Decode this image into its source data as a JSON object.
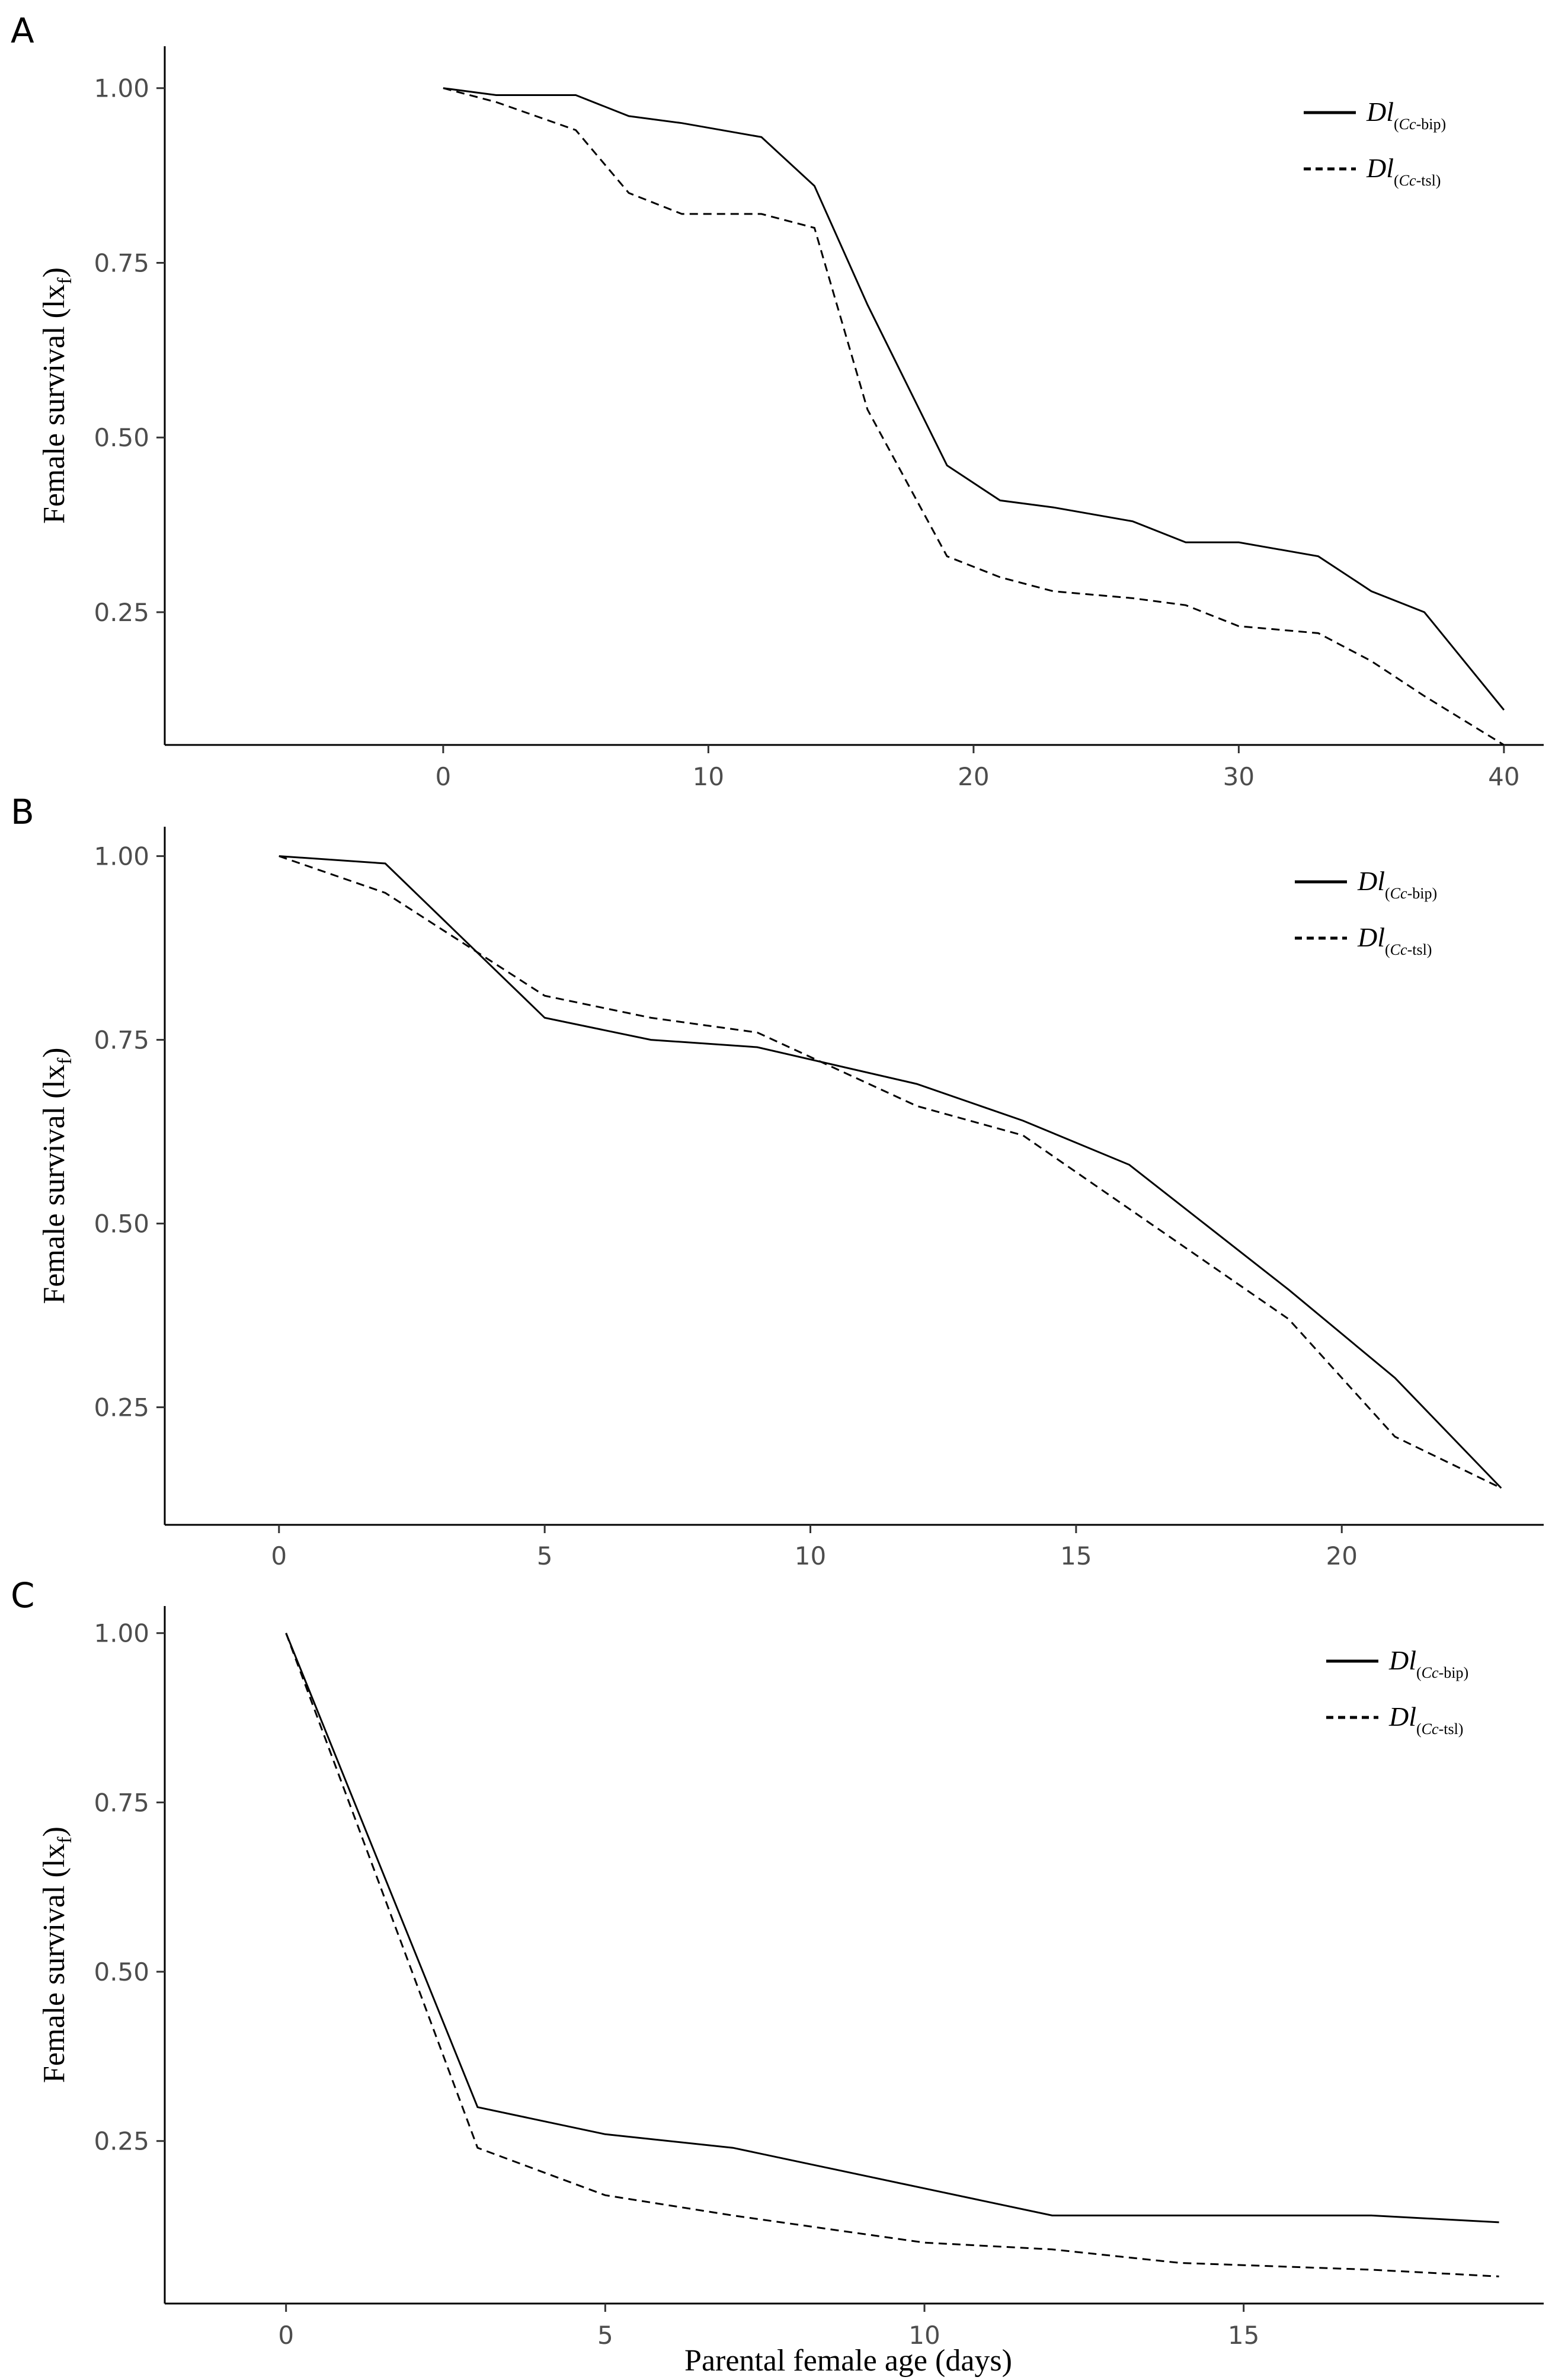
{
  "chart_data": [
    {
      "panel": "A",
      "type": "line",
      "ylabel": "Female survival (lx",
      "ylabel_sub": "f",
      "ylabel_end": ")",
      "xlim": [
        -10.5,
        41.5
      ],
      "ylim": [
        0.06,
        1.06
      ],
      "xticks": [
        0,
        10,
        20,
        30,
        40
      ],
      "xtick_labels": [
        "0",
        "10",
        "20",
        "30",
        "40"
      ],
      "yticks": [
        0.25,
        0.5,
        0.75,
        1.0
      ],
      "ytick_labels": [
        "0.25",
        "0.50",
        "0.75",
        "1.00"
      ],
      "legend_position": "top-right",
      "series": [
        {
          "name": "Dl(Cc-bip)",
          "style": "solid",
          "x": [
            0,
            2,
            5,
            7,
            9,
            12,
            14,
            16,
            19,
            21,
            23,
            26,
            28,
            30,
            33,
            35,
            37,
            40
          ],
          "y": [
            1.0,
            0.99,
            0.99,
            0.96,
            0.95,
            0.93,
            0.86,
            0.69,
            0.46,
            0.41,
            0.4,
            0.38,
            0.35,
            0.35,
            0.33,
            0.28,
            0.25,
            0.11
          ]
        },
        {
          "name": "Dl(Cc-tsl)",
          "style": "dashed",
          "x": [
            0,
            2,
            5,
            7,
            9,
            12,
            14,
            16,
            19,
            21,
            23,
            26,
            28,
            30,
            33,
            35,
            37,
            40
          ],
          "y": [
            1.0,
            0.98,
            0.94,
            0.85,
            0.82,
            0.82,
            0.8,
            0.54,
            0.33,
            0.3,
            0.28,
            0.27,
            0.26,
            0.23,
            0.22,
            0.18,
            0.13,
            0.06
          ]
        }
      ]
    },
    {
      "panel": "B",
      "type": "line",
      "ylabel": "Female survival (lx",
      "ylabel_sub": "f",
      "ylabel_end": ")",
      "xlim": [
        -2.15,
        23.8
      ],
      "ylim": [
        0.09,
        1.04
      ],
      "xticks": [
        0,
        5,
        10,
        15,
        20
      ],
      "xtick_labels": [
        "0",
        "5",
        "10",
        "15",
        "20"
      ],
      "yticks": [
        0.25,
        0.5,
        0.75,
        1.0
      ],
      "ytick_labels": [
        "0.25",
        "0.50",
        "0.75",
        "1.00"
      ],
      "legend_position": "top-right",
      "series": [
        {
          "name": "Dl(Cc-bip)",
          "style": "solid",
          "x": [
            0,
            2,
            5,
            7,
            9,
            12,
            14,
            16,
            19,
            21,
            23
          ],
          "y": [
            1.0,
            0.99,
            0.78,
            0.75,
            0.74,
            0.69,
            0.64,
            0.58,
            0.41,
            0.29,
            0.14
          ]
        },
        {
          "name": "Dl(Cc-tsl)",
          "style": "dashed",
          "x": [
            0,
            2,
            5,
            7,
            9,
            12,
            14,
            16,
            19,
            21,
            23
          ],
          "y": [
            1.0,
            0.95,
            0.81,
            0.78,
            0.76,
            0.66,
            0.62,
            0.52,
            0.37,
            0.21,
            0.14
          ]
        }
      ]
    },
    {
      "panel": "C",
      "type": "line",
      "ylabel": "Female survival (lx",
      "ylabel_sub": "f",
      "ylabel_end": ")",
      "xlabel": "Parental female age (days)",
      "xlim": [
        -1.9,
        19.7
      ],
      "ylim": [
        0.01,
        1.04
      ],
      "xticks": [
        0,
        5,
        10,
        15
      ],
      "xtick_labels": [
        "0",
        "5",
        "10",
        "15"
      ],
      "yticks": [
        0.25,
        0.5,
        0.75,
        1.0
      ],
      "ytick_labels": [
        "0.25",
        "0.50",
        "0.75",
        "1.00"
      ],
      "legend_position": "top-right",
      "series": [
        {
          "name": "Dl(Cc-bip)",
          "style": "solid",
          "x": [
            0,
            3,
            5,
            7,
            10,
            12,
            14,
            17,
            19
          ],
          "y": [
            1.0,
            0.3,
            0.26,
            0.24,
            0.18,
            0.14,
            0.14,
            0.14,
            0.13
          ]
        },
        {
          "name": "Dl(Cc-tsl)",
          "style": "dashed",
          "x": [
            0,
            3,
            5,
            7,
            10,
            12,
            14,
            17,
            19
          ],
          "y": [
            1.0,
            0.24,
            0.17,
            0.14,
            0.1,
            0.09,
            0.07,
            0.06,
            0.05
          ]
        }
      ]
    }
  ],
  "legend": {
    "bip": {
      "main": "Dl",
      "sub_open": "(",
      "sub_species": "Cc",
      "sub_rest": "-bip)"
    },
    "tsl": {
      "main": "Dl",
      "sub_open": "(",
      "sub_species": "Cc",
      "sub_rest": "-tsl)"
    }
  }
}
